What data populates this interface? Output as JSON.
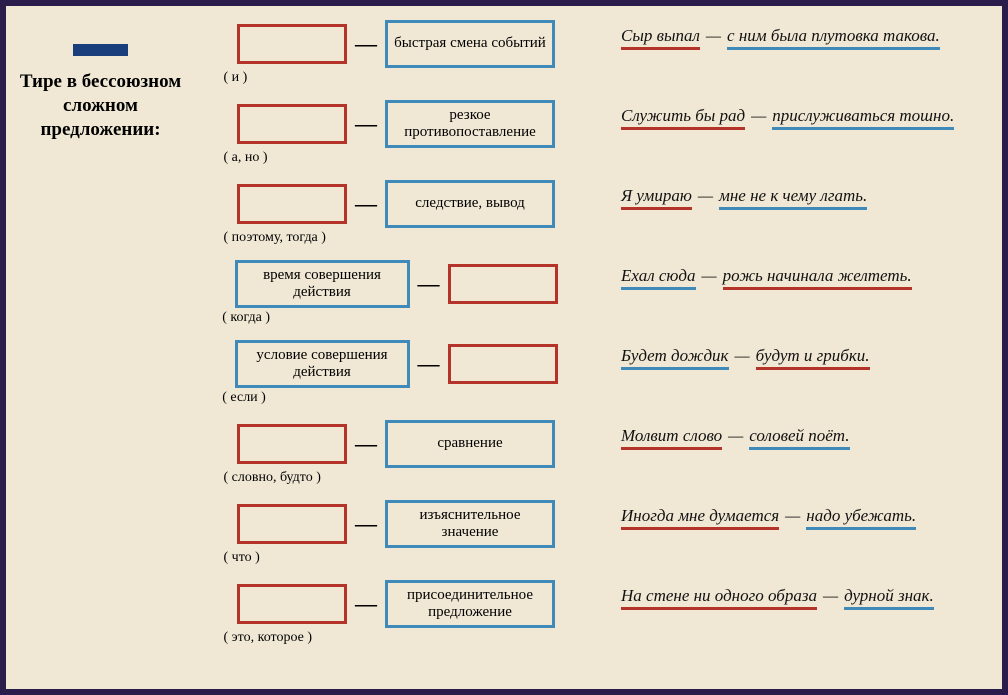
{
  "title": "Тире в бессоюзном сложном предложении:",
  "colors": {
    "red": "#b4342a",
    "blue": "#3f8ab8",
    "bg": "#f0e8d4",
    "border": "#2a1d4c"
  },
  "box_sizes": {
    "empty_w": 110,
    "empty_h": 40,
    "label_w": 170,
    "label_h": 48,
    "wide_w": 175
  },
  "rows": [
    {
      "left_box": {
        "color": "red",
        "text": ""
      },
      "right_box": {
        "color": "blue",
        "text": "быстрая смена событий"
      },
      "hint": "( и )",
      "hint_align": "left",
      "example": {
        "first": "Сыр выпал",
        "first_color": "red",
        "second": "с ним была плутовка такова.",
        "second_color": "blue"
      }
    },
    {
      "left_box": {
        "color": "red",
        "text": ""
      },
      "right_box": {
        "color": "blue",
        "text": "резкое противопоставление"
      },
      "hint": "( а, но )",
      "hint_align": "left",
      "example": {
        "first": "Служить бы рад",
        "first_color": "red",
        "second": "прислуживаться тошно.",
        "second_color": "blue"
      }
    },
    {
      "left_box": {
        "color": "red",
        "text": ""
      },
      "right_box": {
        "color": "blue",
        "text": "следствие, вывод"
      },
      "hint": "( поэтому, тогда )",
      "hint_align": "left",
      "example": {
        "first": "Я умираю",
        "first_color": "red",
        "second": "мне не к чему лгать.",
        "second_color": "blue"
      }
    },
    {
      "left_box": {
        "color": "blue",
        "text": "время совершения действия",
        "wide": true
      },
      "right_box": {
        "color": "red",
        "text": ""
      },
      "hint": "( когда )",
      "hint_align": "left",
      "example": {
        "first": "Ехал сюда",
        "first_color": "blue",
        "second": "рожь начинала желтеть.",
        "second_color": "red"
      }
    },
    {
      "left_box": {
        "color": "blue",
        "text": "условие совершения действия",
        "wide": true
      },
      "right_box": {
        "color": "red",
        "text": ""
      },
      "hint": "( если )",
      "hint_align": "left",
      "example": {
        "first": "Будет дождик",
        "first_color": "blue",
        "second": "будут и грибки.",
        "second_color": "red"
      }
    },
    {
      "left_box": {
        "color": "red",
        "text": ""
      },
      "right_box": {
        "color": "blue",
        "text": "сравнение"
      },
      "hint": "( словно, будто )",
      "hint_align": "left",
      "example": {
        "first": "Молвит слово",
        "first_color": "red",
        "second": "соловей поёт.",
        "second_color": "blue"
      }
    },
    {
      "left_box": {
        "color": "red",
        "text": ""
      },
      "right_box": {
        "color": "blue",
        "text": "изъяснительное значение"
      },
      "hint": "( что )",
      "hint_align": "left",
      "example": {
        "first": "Иногда мне думается",
        "first_color": "red",
        "second": "надо убежать.",
        "second_color": "blue"
      }
    },
    {
      "left_box": {
        "color": "red",
        "text": ""
      },
      "right_box": {
        "color": "blue",
        "text": "присоединительное предложение"
      },
      "hint": "( это, которое )",
      "hint_align": "left",
      "example": {
        "first": "На стене ни одного образа",
        "first_color": "red",
        "second": "дурной знак.",
        "second_color": "blue"
      }
    }
  ]
}
